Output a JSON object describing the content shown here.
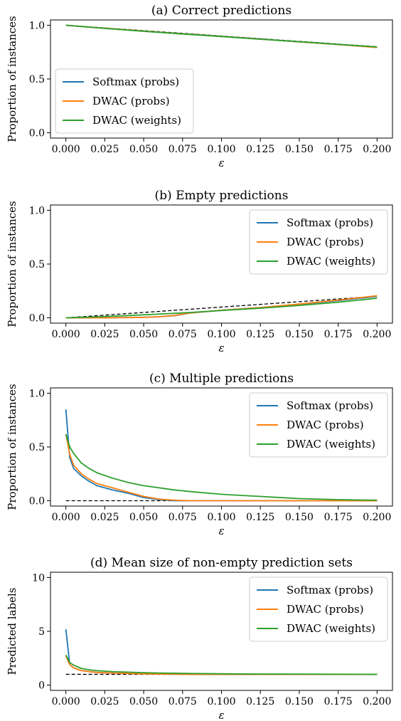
{
  "colors": {
    "softmax": "#1f77b4",
    "dwac_probs": "#ff7f0e",
    "dwac_weights": "#2ca02c",
    "reference": "#000000"
  },
  "chart_data": [
    {
      "type": "line",
      "title": "(a) Correct predictions",
      "xlabel": "ε",
      "ylabel": "Proportion of instances",
      "xlim": [
        0,
        0.2
      ],
      "ylim": [
        0,
        1
      ],
      "xticks": [
        "0.000",
        "0.025",
        "0.050",
        "0.075",
        "0.100",
        "0.125",
        "0.150",
        "0.175",
        "0.200"
      ],
      "yticks": [
        "0.0",
        "0.5",
        "1.0"
      ],
      "legend_position": "lower-left",
      "x": [
        0,
        0.025,
        0.05,
        0.075,
        0.1,
        0.125,
        0.15,
        0.175,
        0.2
      ],
      "reference": {
        "style": "dashed",
        "values": [
          1.0,
          0.975,
          0.95,
          0.925,
          0.9,
          0.875,
          0.85,
          0.825,
          0.8
        ]
      },
      "series": [
        {
          "name": "Softmax (probs)",
          "values": [
            1.0,
            0.972,
            0.945,
            0.92,
            0.897,
            0.872,
            0.846,
            0.822,
            0.797
          ]
        },
        {
          "name": "DWAC (probs)",
          "values": [
            1.0,
            0.972,
            0.946,
            0.92,
            0.896,
            0.871,
            0.845,
            0.82,
            0.793
          ]
        },
        {
          "name": "DWAC (weights)",
          "values": [
            1.0,
            0.971,
            0.944,
            0.919,
            0.895,
            0.87,
            0.847,
            0.822,
            0.798
          ]
        }
      ]
    },
    {
      "type": "line",
      "title": "(b) Empty predictions",
      "xlabel": "ε",
      "ylabel": "Proportion of instances",
      "xlim": [
        0,
        0.2
      ],
      "ylim": [
        0,
        1
      ],
      "xticks": [
        "0.000",
        "0.025",
        "0.050",
        "0.075",
        "0.100",
        "0.125",
        "0.150",
        "0.175",
        "0.200"
      ],
      "yticks": [
        "0.0",
        "0.5",
        "1.0"
      ],
      "legend_position": "upper-right",
      "x": [
        0,
        0.025,
        0.05,
        0.06,
        0.07,
        0.08,
        0.1,
        0.125,
        0.15,
        0.175,
        0.2
      ],
      "reference": {
        "style": "dashed",
        "values": [
          0,
          0.025,
          0.05,
          0.06,
          0.07,
          0.08,
          0.1,
          0.125,
          0.15,
          0.175,
          0.2
        ]
      },
      "series": [
        {
          "name": "Softmax (probs)",
          "values": [
            0,
            0.0,
            0.005,
            0.01,
            0.02,
            0.045,
            0.07,
            0.095,
            0.125,
            0.16,
            0.2
          ]
        },
        {
          "name": "DWAC (probs)",
          "values": [
            0,
            0.0,
            0.004,
            0.01,
            0.022,
            0.046,
            0.07,
            0.095,
            0.128,
            0.165,
            0.205
          ]
        },
        {
          "name": "DWAC (weights)",
          "values": [
            0,
            0.012,
            0.028,
            0.035,
            0.042,
            0.05,
            0.068,
            0.09,
            0.115,
            0.145,
            0.182
          ]
        }
      ]
    },
    {
      "type": "line",
      "title": "(c) Multiple predictions",
      "xlabel": "ε",
      "ylabel": "Proportion of instances",
      "xlim": [
        0,
        0.2
      ],
      "ylim": [
        0,
        1
      ],
      "xticks": [
        "0.000",
        "0.025",
        "0.050",
        "0.075",
        "0.100",
        "0.125",
        "0.150",
        "0.175",
        "0.200"
      ],
      "yticks": [
        "0.0",
        "0.5",
        "1.0"
      ],
      "legend_position": "upper-right",
      "x": [
        0,
        0.0025,
        0.005,
        0.01,
        0.015,
        0.02,
        0.03,
        0.04,
        0.05,
        0.06,
        0.07,
        0.08,
        0.1,
        0.125,
        0.15,
        0.175,
        0.2
      ],
      "reference": {
        "style": "dashed",
        "x_range": [
          0,
          0.07
        ],
        "value": 0
      },
      "series": [
        {
          "name": "Softmax (probs)",
          "values": [
            0.85,
            0.4,
            0.3,
            0.23,
            0.18,
            0.14,
            0.1,
            0.07,
            0.03,
            0.01,
            0.0,
            0.0,
            0.0,
            0.0,
            0.0,
            0.0,
            0.0
          ]
        },
        {
          "name": "DWAC (probs)",
          "values": [
            0.62,
            0.43,
            0.33,
            0.25,
            0.2,
            0.16,
            0.12,
            0.08,
            0.04,
            0.015,
            0.005,
            0.0,
            0.0,
            0.0,
            0.0,
            0.0,
            0.0
          ]
        },
        {
          "name": "DWAC (weights)",
          "values": [
            0.62,
            0.5,
            0.44,
            0.35,
            0.3,
            0.26,
            0.21,
            0.17,
            0.14,
            0.12,
            0.1,
            0.085,
            0.06,
            0.04,
            0.02,
            0.01,
            0.005
          ]
        }
      ]
    },
    {
      "type": "line",
      "title": "(d) Mean size of non-empty prediction sets",
      "xlabel": "ε",
      "ylabel": "Predicted labels",
      "xlim": [
        0,
        0.2
      ],
      "ylim": [
        0,
        10
      ],
      "xticks": [
        "0.000",
        "0.025",
        "0.050",
        "0.075",
        "0.100",
        "0.125",
        "0.150",
        "0.175",
        "0.200"
      ],
      "yticks": [
        "0",
        "5",
        "10"
      ],
      "legend_position": "upper-right",
      "x": [
        0,
        0.0025,
        0.005,
        0.01,
        0.015,
        0.02,
        0.03,
        0.04,
        0.05,
        0.06,
        0.07,
        0.08,
        0.1,
        0.125,
        0.15,
        0.175,
        0.2
      ],
      "reference": {
        "style": "dashed",
        "value": 1
      },
      "series": [
        {
          "name": "Softmax (probs)",
          "values": [
            5.2,
            1.9,
            1.6,
            1.35,
            1.25,
            1.18,
            1.12,
            1.08,
            1.04,
            1.02,
            1.01,
            1.0,
            1.0,
            1.0,
            1.0,
            1.0,
            1.0
          ]
        },
        {
          "name": "DWAC (probs)",
          "values": [
            2.7,
            1.9,
            1.6,
            1.35,
            1.25,
            1.18,
            1.12,
            1.08,
            1.04,
            1.02,
            1.01,
            1.0,
            1.0,
            1.0,
            1.0,
            1.0,
            1.0
          ]
        },
        {
          "name": "DWAC (weights)",
          "values": [
            2.8,
            2.1,
            1.85,
            1.55,
            1.42,
            1.34,
            1.25,
            1.2,
            1.15,
            1.12,
            1.1,
            1.08,
            1.05,
            1.03,
            1.02,
            1.01,
            1.0
          ]
        }
      ]
    }
  ]
}
